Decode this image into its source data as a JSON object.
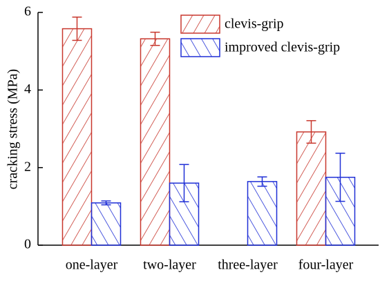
{
  "chart_data": {
    "type": "bar",
    "ylabel": "cracking stress (MPa)",
    "categories": [
      "one-layer",
      "two-layer",
      "three-layer",
      "four-layer"
    ],
    "series": [
      {
        "name": "clevis-grip",
        "color": "#c8372d",
        "hatch": "/",
        "values": [
          5.58,
          5.32,
          null,
          2.92
        ],
        "errors": [
          0.3,
          0.17,
          null,
          0.29
        ]
      },
      {
        "name": "improved clevis-grip",
        "color": "#1f2fd6",
        "hatch": "\\",
        "values": [
          1.09,
          1.6,
          1.64,
          1.75
        ],
        "errors": [
          0.05,
          0.48,
          0.12,
          0.62
        ]
      }
    ],
    "ylim": [
      0,
      6
    ],
    "yticks": [
      0,
      2,
      4,
      6
    ],
    "legend": "upper right"
  }
}
